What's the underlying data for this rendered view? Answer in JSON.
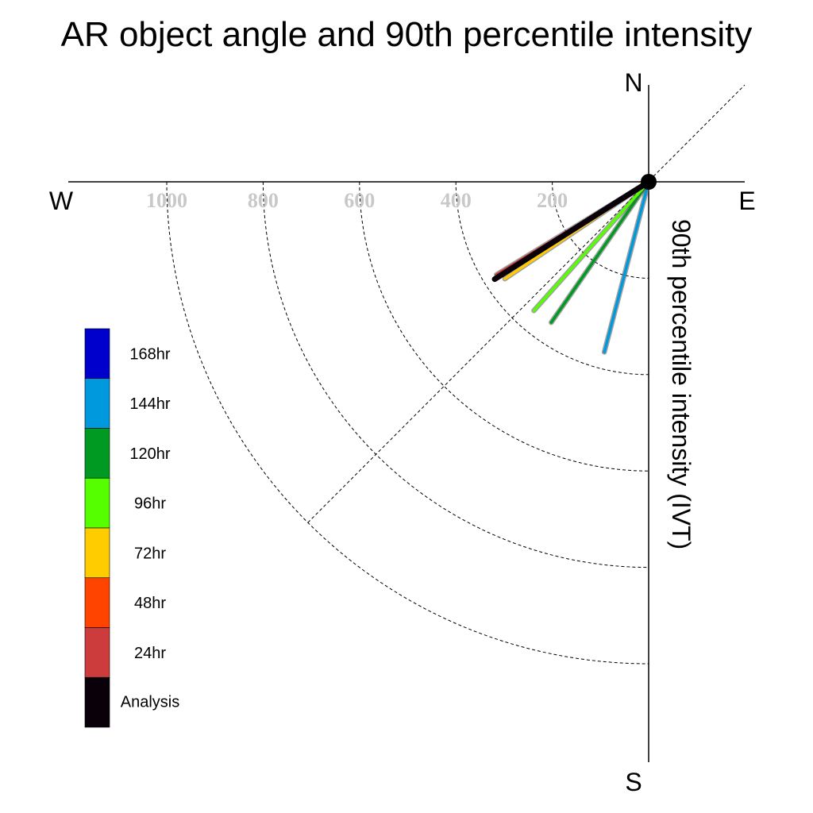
{
  "chart_data": {
    "type": "polar-vector",
    "title": "AR object angle and 90th percentile intensity",
    "ylabel": "90th percentile intensity (IVT)",
    "compass": {
      "north": "N",
      "east": "E",
      "south": "S",
      "west": "W"
    },
    "radial_ticks": [
      200,
      400,
      600,
      800,
      1000
    ],
    "radial_tick_labels": [
      "200",
      "400",
      "600",
      "800",
      "1000"
    ],
    "radial_max": 1000,
    "grid": true,
    "legend_position": "left",
    "legend": [
      "168hr",
      "144hr",
      "120hr",
      "96hr",
      "72hr",
      "48hr",
      "24hr",
      "Analysis"
    ],
    "legend_colors": [
      "#0000cc",
      "#0099dd",
      "#009922",
      "#55ff00",
      "#ffcc00",
      "#ff4400",
      "#cc3c3c",
      "#0a000a"
    ],
    "series": [
      {
        "name": "144hr",
        "color": "#0099dd",
        "bearing_deg": 194.6,
        "intensity": 365
      },
      {
        "name": "120hr",
        "color": "#009922",
        "bearing_deg": 214.7,
        "intensity": 355
      },
      {
        "name": "96hr",
        "color": "#55ff00",
        "bearing_deg": 221.7,
        "intensity": 358
      },
      {
        "name": "72hr",
        "color": "#ffcc00",
        "bearing_deg": 236.0,
        "intensity": 360
      },
      {
        "name": "24hr",
        "color": "#cc3c3c",
        "bearing_deg": 238.6,
        "intensity": 370
      },
      {
        "name": "Analysis",
        "color": "#0a000a",
        "bearing_deg": 237.7,
        "intensity": 378
      }
    ]
  }
}
